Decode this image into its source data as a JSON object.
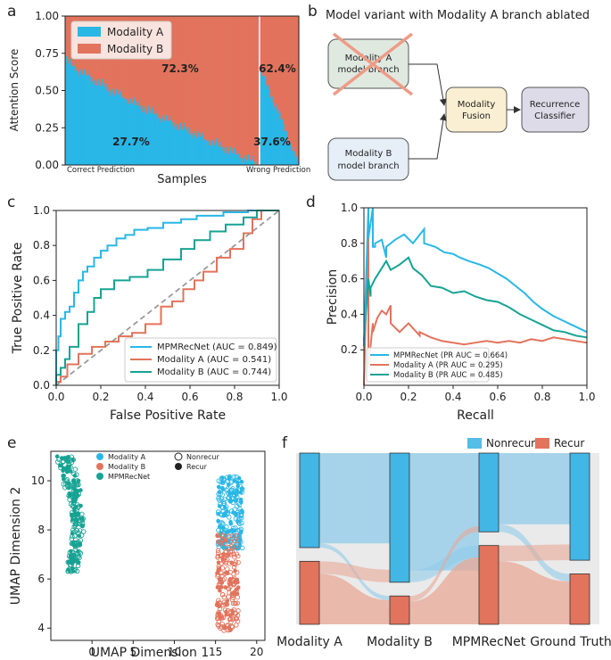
{
  "panels": {
    "a": "a",
    "b": "b",
    "c": "c",
    "d": "d",
    "e": "e",
    "f": "f"
  },
  "colors": {
    "cyan": "#29b7e6",
    "orange": "#e2735c",
    "teal": "#16a393",
    "grey_dashed": "#9a9a9a",
    "node_a": "#dfe9e0",
    "node_b": "#e6eef7",
    "node_fusion": "#fbefd3",
    "node_classifier": "#dddbe8",
    "cross": "#ee9b86"
  },
  "chart_data": [
    {
      "id": "a",
      "type": "bar",
      "ylabel": "Attention Score",
      "xlabel": "Samples",
      "ylim": [
        0,
        1
      ],
      "yticks": [
        "0.00",
        "0.25",
        "0.50",
        "0.75",
        "1.00"
      ],
      "legend": [
        "Modality A",
        "Modality B"
      ],
      "groups": [
        {
          "name": "Correct Prediction",
          "n_samples": 200,
          "modality_a_start": 0.71,
          "modality_a_end": 0.01,
          "mean_a": "27.7%",
          "mean_b": "72.3%"
        },
        {
          "name": "Wrong Prediction",
          "n_samples": 40,
          "modality_a_start": 0.62,
          "modality_a_end": 0.01,
          "mean_a": "37.6%",
          "mean_b": "62.4%"
        }
      ]
    },
    {
      "id": "c",
      "type": "line",
      "xlabel": "False Positive Rate",
      "ylabel": "True Positive Rate",
      "xlim": [
        0,
        1
      ],
      "ylim": [
        0,
        1
      ],
      "ticks": [
        "0.0",
        "0.2",
        "0.4",
        "0.6",
        "0.8",
        "1.0"
      ],
      "series": [
        {
          "name": "MPMRecNet (AUC = 0.849)",
          "color": "cyan",
          "x": [
            0,
            0,
            0.01,
            0.01,
            0.02,
            0.02,
            0.04,
            0.04,
            0.06,
            0.06,
            0.08,
            0.08,
            0.1,
            0.1,
            0.12,
            0.12,
            0.14,
            0.14,
            0.17,
            0.17,
            0.2,
            0.2,
            0.23,
            0.23,
            0.27,
            0.27,
            0.31,
            0.31,
            0.35,
            0.35,
            0.41,
            0.41,
            0.48,
            0.48,
            0.56,
            0.56,
            0.63,
            0.63,
            0.75,
            0.75,
            0.86,
            0.86,
            1.0
          ],
          "y": [
            0,
            0.2,
            0.2,
            0.28,
            0.28,
            0.38,
            0.38,
            0.42,
            0.42,
            0.45,
            0.45,
            0.53,
            0.53,
            0.6,
            0.6,
            0.65,
            0.65,
            0.68,
            0.68,
            0.73,
            0.73,
            0.77,
            0.77,
            0.8,
            0.8,
            0.84,
            0.84,
            0.86,
            0.86,
            0.89,
            0.89,
            0.9,
            0.9,
            0.93,
            0.93,
            0.95,
            0.95,
            0.97,
            0.97,
            0.99,
            0.99,
            1.0,
            1.0
          ]
        },
        {
          "name": "Modality A (AUC = 0.541)",
          "color": "orange",
          "x": [
            0,
            0,
            0.02,
            0.02,
            0.05,
            0.05,
            0.1,
            0.1,
            0.16,
            0.16,
            0.22,
            0.22,
            0.28,
            0.28,
            0.34,
            0.34,
            0.4,
            0.4,
            0.47,
            0.47,
            0.52,
            0.52,
            0.57,
            0.57,
            0.62,
            0.62,
            0.66,
            0.66,
            0.72,
            0.72,
            0.78,
            0.78,
            0.84,
            0.84,
            0.88,
            0.88,
            0.92,
            0.92,
            1.0
          ],
          "y": [
            0,
            0.02,
            0.02,
            0.05,
            0.05,
            0.12,
            0.12,
            0.18,
            0.18,
            0.22,
            0.22,
            0.25,
            0.25,
            0.28,
            0.28,
            0.3,
            0.3,
            0.35,
            0.35,
            0.45,
            0.45,
            0.48,
            0.48,
            0.55,
            0.55,
            0.6,
            0.6,
            0.65,
            0.65,
            0.73,
            0.73,
            0.78,
            0.78,
            0.87,
            0.87,
            0.95,
            0.95,
            1.0,
            1.0
          ]
        },
        {
          "name": "Modality B (AUC = 0.744)",
          "color": "teal",
          "x": [
            0,
            0,
            0.02,
            0.02,
            0.04,
            0.04,
            0.06,
            0.06,
            0.1,
            0.1,
            0.14,
            0.14,
            0.17,
            0.17,
            0.2,
            0.2,
            0.26,
            0.26,
            0.33,
            0.33,
            0.41,
            0.41,
            0.48,
            0.48,
            0.56,
            0.56,
            0.62,
            0.62,
            0.69,
            0.69,
            0.76,
            0.76,
            0.84,
            0.84,
            0.9,
            0.9,
            1.0
          ],
          "y": [
            0,
            0.06,
            0.06,
            0.1,
            0.1,
            0.15,
            0.15,
            0.22,
            0.22,
            0.35,
            0.35,
            0.42,
            0.42,
            0.5,
            0.5,
            0.55,
            0.55,
            0.6,
            0.6,
            0.62,
            0.62,
            0.66,
            0.66,
            0.72,
            0.72,
            0.78,
            0.78,
            0.83,
            0.83,
            0.88,
            0.88,
            0.92,
            0.92,
            0.96,
            0.96,
            1.0,
            1.0
          ]
        },
        {
          "name": "chance",
          "color": "grey_dashed",
          "dashed": true,
          "x": [
            0,
            1
          ],
          "y": [
            0,
            1
          ]
        }
      ]
    },
    {
      "id": "d",
      "type": "line",
      "xlabel": "Recall",
      "ylabel": "Precision",
      "xlim": [
        0,
        1
      ],
      "ylim": [
        0,
        1
      ],
      "xticks": [
        "0.0",
        "0.2",
        "0.4",
        "0.6",
        "0.8",
        "1.0"
      ],
      "yticks": [
        "0.2",
        "0.4",
        "0.6",
        "0.8",
        "1.0"
      ],
      "series": [
        {
          "name": "MPMRecNet (PR AUC = 0.664)",
          "color": "cyan",
          "x": [
            0,
            0.02,
            0.02,
            0.04,
            0.04,
            0.05,
            0.05,
            0.08,
            0.1,
            0.1,
            0.14,
            0.18,
            0.22,
            0.27,
            0.27,
            0.32,
            0.36,
            0.4,
            0.43,
            0.47,
            0.52,
            0.56,
            0.6,
            0.64,
            0.68,
            0.72,
            0.76,
            0.8,
            0.85,
            0.9,
            0.95,
            1.0
          ],
          "y": [
            0.22,
            1.0,
            0.83,
            1.0,
            0.78,
            0.78,
            0.8,
            0.82,
            0.72,
            0.78,
            0.82,
            0.85,
            0.8,
            0.88,
            0.8,
            0.78,
            0.75,
            0.74,
            0.72,
            0.7,
            0.68,
            0.66,
            0.63,
            0.6,
            0.56,
            0.52,
            0.47,
            0.43,
            0.39,
            0.36,
            0.33,
            0.3
          ]
        },
        {
          "name": "Modality A (PR AUC = 0.295)",
          "color": "orange",
          "x": [
            0,
            0.02,
            0.02,
            0.04,
            0.04,
            0.06,
            0.08,
            0.1,
            0.12,
            0.12,
            0.16,
            0.2,
            0.25,
            0.25,
            0.3,
            0.35,
            0.4,
            0.45,
            0.5,
            0.55,
            0.6,
            0.65,
            0.7,
            0.75,
            0.8,
            0.85,
            0.9,
            0.95,
            1.0
          ],
          "y": [
            0,
            0.95,
            0.1,
            0.35,
            0.3,
            0.38,
            0.42,
            0.4,
            0.45,
            0.35,
            0.3,
            0.35,
            0.28,
            0.3,
            0.27,
            0.25,
            0.24,
            0.23,
            0.24,
            0.25,
            0.24,
            0.25,
            0.24,
            0.26,
            0.25,
            0.27,
            0.26,
            0.25,
            0.24
          ]
        },
        {
          "name": "Modality B (PR AUC = 0.485)",
          "color": "teal",
          "x": [
            0,
            0.02,
            0.03,
            0.03,
            0.05,
            0.08,
            0.1,
            0.12,
            0.16,
            0.2,
            0.22,
            0.26,
            0.3,
            0.35,
            0.4,
            0.45,
            0.5,
            0.55,
            0.6,
            0.65,
            0.7,
            0.75,
            0.8,
            0.85,
            0.9,
            0.95,
            1.0
          ],
          "y": [
            0.25,
            0.6,
            0.5,
            0.55,
            0.6,
            0.66,
            0.7,
            0.65,
            0.68,
            0.72,
            0.66,
            0.62,
            0.56,
            0.55,
            0.52,
            0.53,
            0.5,
            0.48,
            0.47,
            0.44,
            0.4,
            0.37,
            0.34,
            0.31,
            0.3,
            0.28,
            0.27
          ]
        }
      ]
    },
    {
      "id": "e",
      "type": "scatter",
      "xlabel": "UMAP Dimension 1",
      "ylabel": "UMAP Dimension 2",
      "xlim": [
        -5,
        21
      ],
      "ylim": [
        3.5,
        11.2
      ],
      "xticks": [
        0,
        5,
        10,
        15,
        20
      ],
      "yticks": [
        4,
        6,
        8,
        10
      ],
      "legend": [
        "Modality A",
        "Modality B",
        "MPMRecNet"
      ],
      "legend_markers": [
        "Nonrecur",
        "Recur"
      ],
      "clusters": [
        {
          "name": "MPMRecNet",
          "color": "teal",
          "center_x": -2.5,
          "y_range": [
            6.3,
            11.0
          ],
          "width": 1.6
        },
        {
          "name": "Modality A",
          "color": "cyan",
          "center_x": 16.8,
          "y_range": [
            7.2,
            10.2
          ],
          "width": 3.0
        },
        {
          "name": "Modality B",
          "color": "orange",
          "center_x": 16.5,
          "y_range": [
            3.9,
            7.8
          ],
          "width": 2.6
        }
      ]
    },
    {
      "id": "f",
      "type": "sankey",
      "legend": [
        "Nonrecur",
        "Recur"
      ],
      "columns": [
        {
          "name": "Modality A",
          "nonrecur": 0.6,
          "recur": 0.4
        },
        {
          "name": "Modality B",
          "nonrecur": 0.82,
          "recur": 0.18
        },
        {
          "name": "MPMRecNet",
          "nonrecur": 0.5,
          "recur": 0.5
        },
        {
          "name": "Ground Truth",
          "nonrecur": 0.68,
          "recur": 0.32
        }
      ]
    }
  ],
  "diagram": {
    "title": "Model variant with Modality A branch ablated",
    "node_a": [
      "Modality A",
      "model branch"
    ],
    "node_b": [
      "Modality B",
      "model branch"
    ],
    "node_fusion": [
      "Modality",
      "Fusion"
    ],
    "node_classifier": [
      "Recurrence",
      "Classifier"
    ]
  }
}
